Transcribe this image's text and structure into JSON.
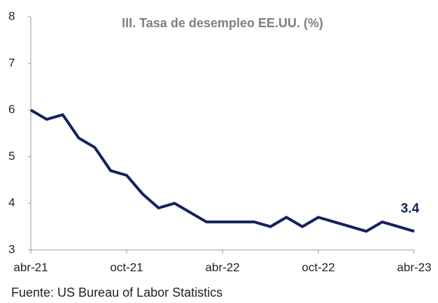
{
  "chart_data": {
    "type": "line",
    "title": "III. Tasa de desempleo EE.UU. (%)",
    "source": "Fuente: US Bureau of Labor Statistics",
    "categories": [
      "abr-21",
      null,
      null,
      null,
      null,
      null,
      "oct-21",
      null,
      null,
      null,
      null,
      null,
      "abr-22",
      null,
      null,
      null,
      null,
      null,
      "oct-22",
      null,
      null,
      null,
      null,
      null,
      "abr-23"
    ],
    "series": [
      {
        "name": "Tasa de desempleo",
        "color": "#12225e",
        "values": [
          6.0,
          5.8,
          5.9,
          5.4,
          5.2,
          4.7,
          4.6,
          4.2,
          3.9,
          4.0,
          3.8,
          3.6,
          3.6,
          3.6,
          3.6,
          3.5,
          3.7,
          3.5,
          3.7,
          3.6,
          3.5,
          3.4,
          3.6,
          3.5,
          3.4
        ],
        "value_labels": [
          null,
          null,
          null,
          null,
          null,
          null,
          null,
          null,
          null,
          null,
          null,
          null,
          null,
          null,
          null,
          null,
          null,
          null,
          null,
          null,
          null,
          null,
          null,
          null,
          "3.4"
        ]
      }
    ],
    "ylim": [
      3,
      8
    ],
    "yticks": [
      3,
      4,
      5,
      6,
      7,
      8
    ],
    "grid": false
  }
}
